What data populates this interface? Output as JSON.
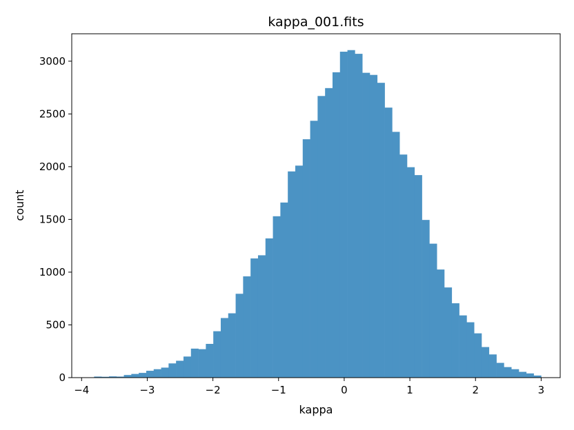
{
  "chart_data": {
    "type": "bar",
    "title": "kappa_001.fits",
    "xlabel": "kappa",
    "ylabel": "count",
    "xlim": [
      -4.15,
      3.29
    ],
    "ylim": [
      0,
      3260
    ],
    "xticks": [
      -4,
      -3,
      -2,
      -1,
      0,
      1,
      2,
      3
    ],
    "xtick_labels": [
      "−4",
      "−3",
      "−2",
      "−1",
      "0",
      "1",
      "2",
      "3"
    ],
    "yticks": [
      0,
      500,
      1000,
      1500,
      2000,
      2500,
      3000
    ],
    "ytick_labels": [
      "0",
      "500",
      "1000",
      "1500",
      "2000",
      "2500",
      "3000"
    ],
    "grid": false,
    "bar_color": "#4b93c4",
    "bin_start": -3.81,
    "bin_width": 0.1135,
    "counts": [
      10,
      8,
      12,
      10,
      25,
      35,
      45,
      65,
      80,
      95,
      135,
      160,
      200,
      275,
      270,
      320,
      440,
      565,
      610,
      795,
      960,
      1130,
      1160,
      1320,
      1530,
      1660,
      1955,
      2010,
      2260,
      2435,
      2670,
      2745,
      2895,
      3090,
      3105,
      3070,
      2890,
      2870,
      2795,
      2560,
      2330,
      2115,
      1995,
      1920,
      1495,
      1270,
      1025,
      855,
      705,
      590,
      525,
      420,
      290,
      220,
      140,
      100,
      80,
      55,
      40,
      20
    ]
  }
}
